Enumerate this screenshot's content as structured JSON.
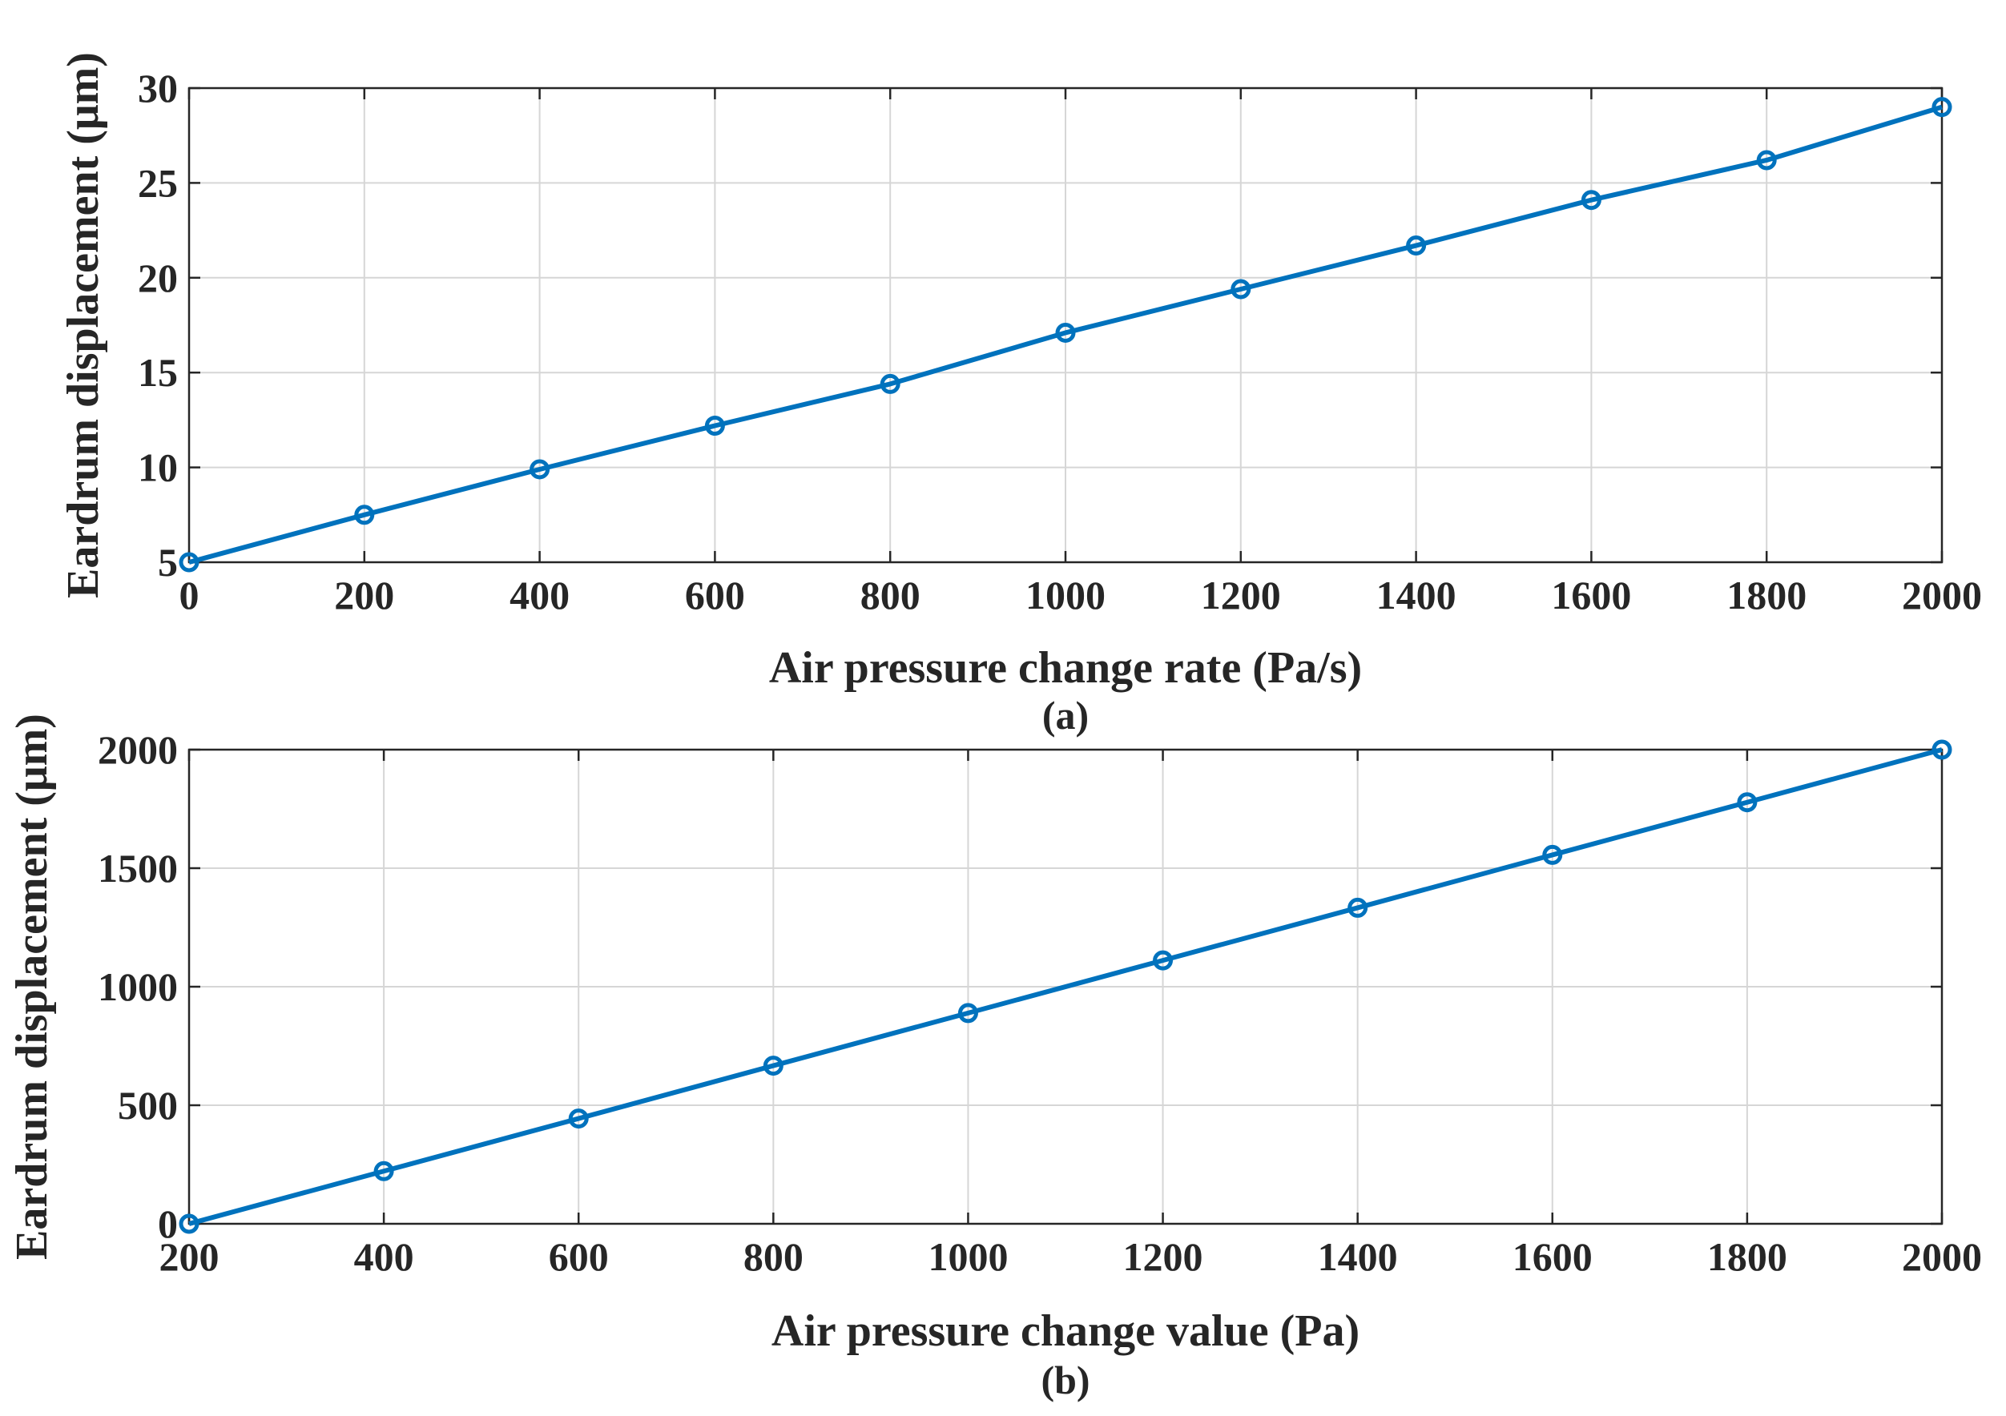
{
  "colors": {
    "series": "#0072BD",
    "axis": "#262626",
    "grid": "#d6d6d6",
    "background": "#ffffff"
  },
  "chart_data": [
    {
      "type": "line",
      "panel_label": "(a)",
      "title": "",
      "xlabel": "Air pressure change rate (Pa/s)",
      "ylabel": "Eardrum displacement (μm)",
      "xlim": [
        0,
        2000
      ],
      "ylim": [
        5,
        30
      ],
      "xticks": [
        0,
        200,
        400,
        600,
        800,
        1000,
        1200,
        1400,
        1600,
        1800,
        2000
      ],
      "yticks": [
        5,
        10,
        15,
        20,
        25,
        30
      ],
      "grid": true,
      "series": [
        {
          "name": "Eardrum displacement",
          "marker": "circle",
          "x": [
            0,
            200,
            400,
            600,
            800,
            1000,
            1200,
            1400,
            1600,
            1800,
            2000
          ],
          "y": [
            5.0,
            7.5,
            9.9,
            12.2,
            14.4,
            17.1,
            19.4,
            21.7,
            24.1,
            26.2,
            29.0
          ]
        }
      ]
    },
    {
      "type": "line",
      "panel_label": "(b)",
      "title": "",
      "xlabel": "Air pressure change value (Pa)",
      "ylabel": "Eardrum displacement (μm)",
      "xlim": [
        200,
        2000
      ],
      "ylim": [
        0,
        2000
      ],
      "xticks": [
        200,
        400,
        600,
        800,
        1000,
        1200,
        1400,
        1600,
        1800,
        2000
      ],
      "yticks": [
        0,
        500,
        1000,
        1500,
        2000
      ],
      "grid": true,
      "series": [
        {
          "name": "Eardrum displacement",
          "marker": "circle",
          "x": [
            200,
            400,
            600,
            800,
            1000,
            1200,
            1400,
            1600,
            1800,
            2000
          ],
          "y": [
            0,
            222,
            444,
            667,
            889,
            1111,
            1333,
            1556,
            1778,
            2000
          ]
        }
      ]
    }
  ]
}
